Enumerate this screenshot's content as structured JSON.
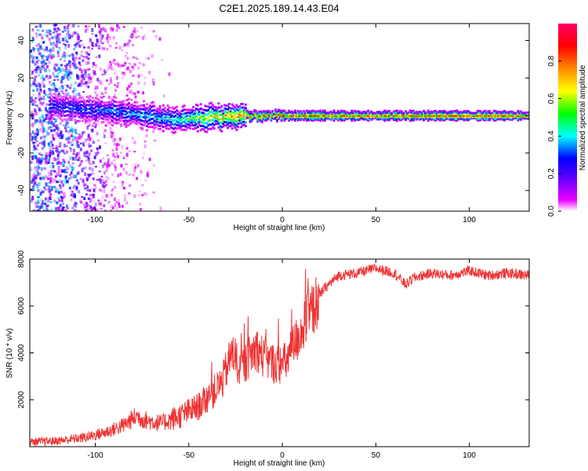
{
  "title": "C2E1.2025.189.14.43.E04",
  "colors": {
    "snr_line": "#ee3333",
    "spectrogram_cmap": [
      "#ffffff",
      "#ee00ff",
      "#6600ff",
      "#0000ff",
      "#00ffff",
      "#00ff00",
      "#ffff00",
      "#ff8800",
      "#ff0000",
      "#ff0066"
    ]
  },
  "chart_data": [
    {
      "type": "heatmap",
      "xlabel": "Height of straight line (km)",
      "ylabel": "Frequency (Hz)",
      "xlim": [
        -135,
        132
      ],
      "ylim": [
        -51,
        49
      ],
      "xticks": [
        -100,
        -50,
        0,
        50,
        100
      ],
      "yticks": [
        -40,
        -20,
        0,
        20,
        40
      ],
      "xtick_labels": [
        "-100",
        "-50",
        "0",
        "50",
        "100"
      ],
      "ytick_labels": [
        "-40",
        "-20",
        "0",
        "20",
        "40"
      ],
      "ridge": {
        "description_points_x": [
          -120,
          -100,
          -80,
          -60,
          -40,
          -20,
          0,
          20,
          60,
          100,
          132
        ],
        "frequency_hz": [
          5,
          3,
          1,
          -2,
          -1,
          0,
          0,
          0,
          0,
          0,
          0
        ],
        "peak_amplitude": [
          0.3,
          0.35,
          0.4,
          0.45,
          0.7,
          0.85,
          0.9,
          0.9,
          0.9,
          0.95,
          0.95
        ]
      },
      "colorbar": {
        "label": "Normalized spectral amplitude",
        "range": [
          0,
          1
        ],
        "ticks": [
          0,
          0.2,
          0.4,
          0.6,
          0.8
        ],
        "tick_labels": [
          "0.0",
          "0.2",
          "0.4",
          "0.6",
          "0.8"
        ]
      }
    },
    {
      "type": "line",
      "xlabel": "Height of straight line (km)",
      "ylabel": "SNR (10 * v/v)",
      "xlim": [
        -135,
        132
      ],
      "ylim": [
        0,
        8000
      ],
      "xticks": [
        -100,
        -50,
        0,
        50,
        100
      ],
      "yticks": [
        2000,
        4000,
        6000,
        8000
      ],
      "xtick_labels": [
        "-100",
        "-50",
        "0",
        "50",
        "100"
      ],
      "ytick_labels": [
        "2000",
        "4000",
        "6000",
        "8000"
      ],
      "grid": false,
      "series": [
        {
          "x": [
            -135,
            -120,
            -105,
            -95,
            -85,
            -78,
            -72,
            -65,
            -55,
            -45,
            -38,
            -32,
            -27,
            -22,
            -18,
            -14,
            -10,
            -6,
            -2,
            2,
            6,
            10,
            14,
            18,
            22,
            26,
            30,
            40,
            50,
            60,
            66,
            70,
            80,
            90,
            100,
            110,
            120,
            132
          ],
          "y": [
            200,
            250,
            400,
            600,
            900,
            1300,
            1100,
            1000,
            1300,
            1700,
            2200,
            2800,
            4000,
            3300,
            3800,
            4200,
            3800,
            3600,
            3500,
            3600,
            4300,
            4900,
            5500,
            6100,
            6700,
            7000,
            7300,
            7400,
            7600,
            7400,
            6900,
            7200,
            7400,
            7300,
            7500,
            7300,
            7400,
            7300
          ]
        }
      ]
    }
  ]
}
